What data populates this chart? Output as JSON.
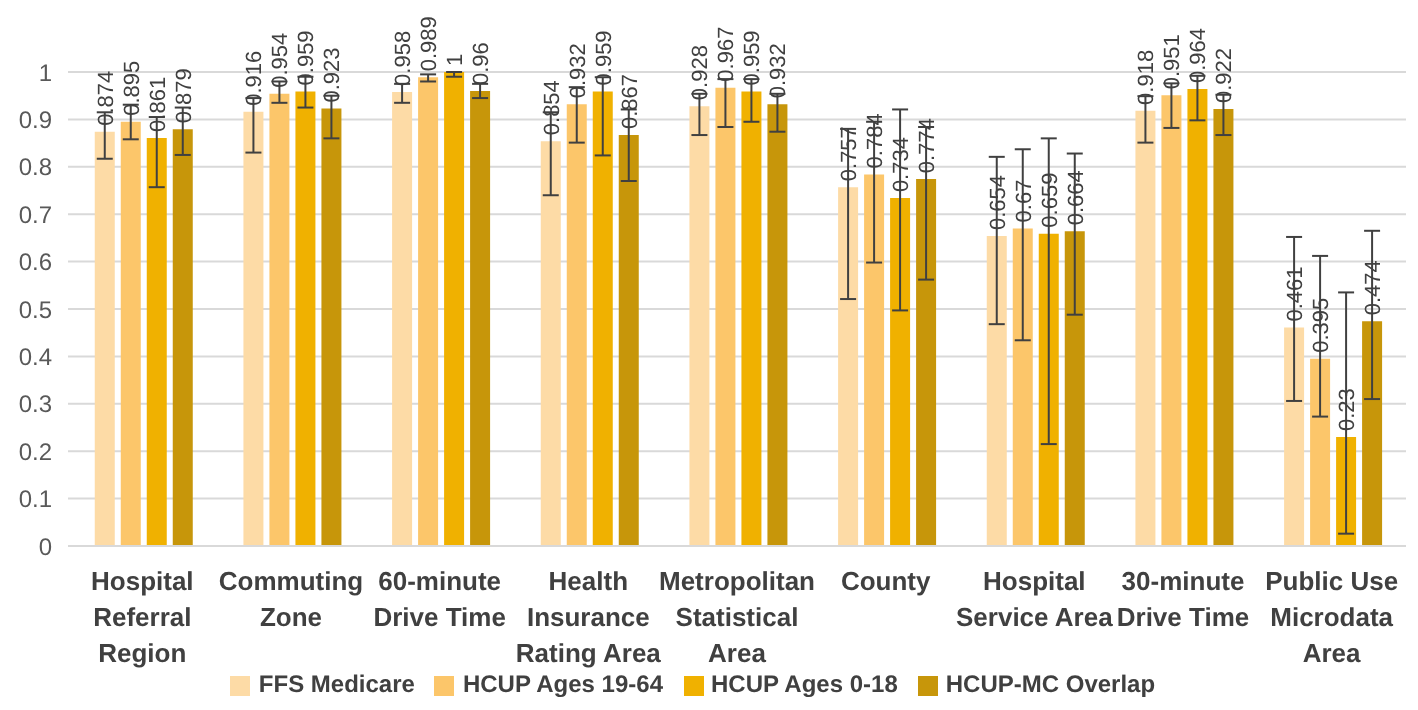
{
  "chart_data": {
    "type": "bar",
    "categories": [
      "Hospital Referral Region",
      "Commuting Zone",
      "60-minute Drive Time",
      "Health Insurance Rating Area",
      "Metropolitan Statistical Area",
      "County",
      "Hospital Service Area",
      "30-minute Drive Time",
      "Public Use Microdata Area"
    ],
    "series": [
      {
        "name": "FFS Medicare",
        "color": "#fddba6",
        "values": [
          0.874,
          0.916,
          0.958,
          0.854,
          0.928,
          0.757,
          0.654,
          0.918,
          0.461
        ],
        "errors": [
          [
            0.817,
            0.915
          ],
          [
            0.83,
            0.945
          ],
          [
            0.935,
            0.975
          ],
          [
            0.74,
            0.915
          ],
          [
            0.867,
            0.954
          ],
          [
            0.521,
            0.88
          ],
          [
            0.468,
            0.821
          ],
          [
            0.851,
            0.949
          ],
          [
            0.306,
            0.652
          ]
        ]
      },
      {
        "name": "HCUP Ages 19-64",
        "color": "#fcc66a",
        "values": [
          0.895,
          0.954,
          0.989,
          0.932,
          0.967,
          0.784,
          0.67,
          0.951,
          0.395
        ],
        "errors": [
          [
            0.858,
            0.931
          ],
          [
            0.935,
            0.98
          ],
          [
            0.98,
            0.995
          ],
          [
            0.851,
            0.968
          ],
          [
            0.884,
            0.985
          ],
          [
            0.598,
            0.895
          ],
          [
            0.434,
            0.837
          ],
          [
            0.882,
            0.976
          ],
          [
            0.273,
            0.612
          ]
        ]
      },
      {
        "name": "HCUP Ages 0-18",
        "color": "#f0b100",
        "values": [
          0.861,
          0.959,
          1,
          0.959,
          0.959,
          0.734,
          0.659,
          0.964,
          0.23
        ],
        "errors": [
          [
            0.757,
            0.905
          ],
          [
            0.925,
            0.99
          ],
          [
            0.99,
            1
          ],
          [
            0.824,
            0.989
          ],
          [
            0.895,
            0.985
          ],
          [
            0.497,
            0.921
          ],
          [
            0.215,
            0.86
          ],
          [
            0.898,
            0.992
          ],
          [
            0.026,
            0.535
          ]
        ]
      },
      {
        "name": "HCUP-MC Overlap",
        "color": "#c7960a",
        "values": [
          0.879,
          0.923,
          0.96,
          0.867,
          0.932,
          0.774,
          0.664,
          0.922,
          0.474
        ],
        "errors": [
          [
            0.825,
            0.925
          ],
          [
            0.86,
            0.95
          ],
          [
            0.945,
            0.975
          ],
          [
            0.77,
            0.921
          ],
          [
            0.874,
            0.954
          ],
          [
            0.562,
            0.884
          ],
          [
            0.488,
            0.828
          ],
          [
            0.867,
            0.952
          ],
          [
            0.31,
            0.665
          ]
        ]
      }
    ],
    "ylim": [
      0,
      1
    ],
    "yticks": [
      0,
      0.1,
      0.2,
      0.3,
      0.4,
      0.5,
      0.6,
      0.7,
      0.8,
      0.9,
      1
    ],
    "grid": "y",
    "legend": "bottom",
    "data_labels": true
  }
}
